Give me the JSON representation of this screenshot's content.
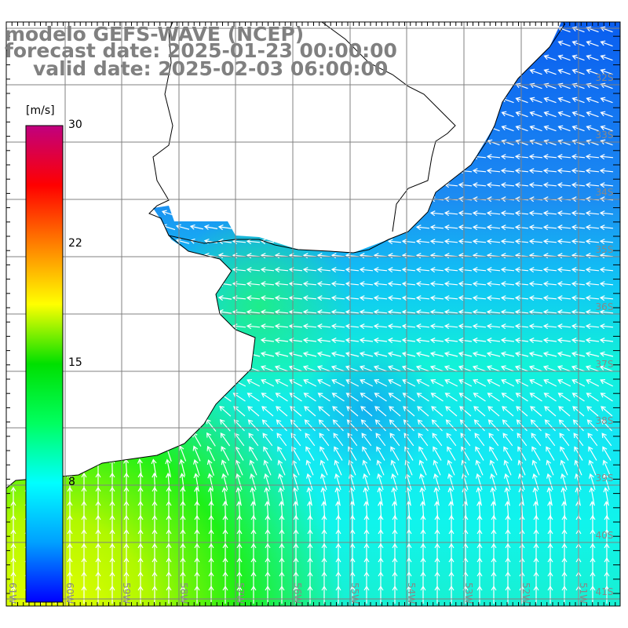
{
  "title": {
    "line1": "modelo GEFS-WAVE (NCEP)",
    "line2": "forecast date: 2025-01-23 00:00:00",
    "line3": "valid date: 2025-02-03 06:00:00"
  },
  "colorbar": {
    "unit": "[m/s]",
    "min": 0,
    "max": 30,
    "ticks": [
      "30",
      "22",
      "15",
      "8"
    ],
    "colors": [
      "#0000ff",
      "#00a0ff",
      "#00ffff",
      "#00ff60",
      "#00e000",
      "#ffff00",
      "#ff8000",
      "#ff0000",
      "#c0007f"
    ]
  },
  "lat_labels": [
    "32S",
    "33S",
    "34S",
    "35S",
    "36S",
    "37S",
    "38S",
    "39S",
    "40S",
    "41S"
  ],
  "lon_labels": [
    "61W",
    "60W",
    "59W",
    "58W",
    "57W",
    "56W",
    "55W",
    "54W",
    "53W",
    "52W",
    "51W"
  ],
  "colors": {
    "grid": "#808080",
    "coast": "#000000",
    "arrow": "#ffffff",
    "title": "#808080"
  }
}
